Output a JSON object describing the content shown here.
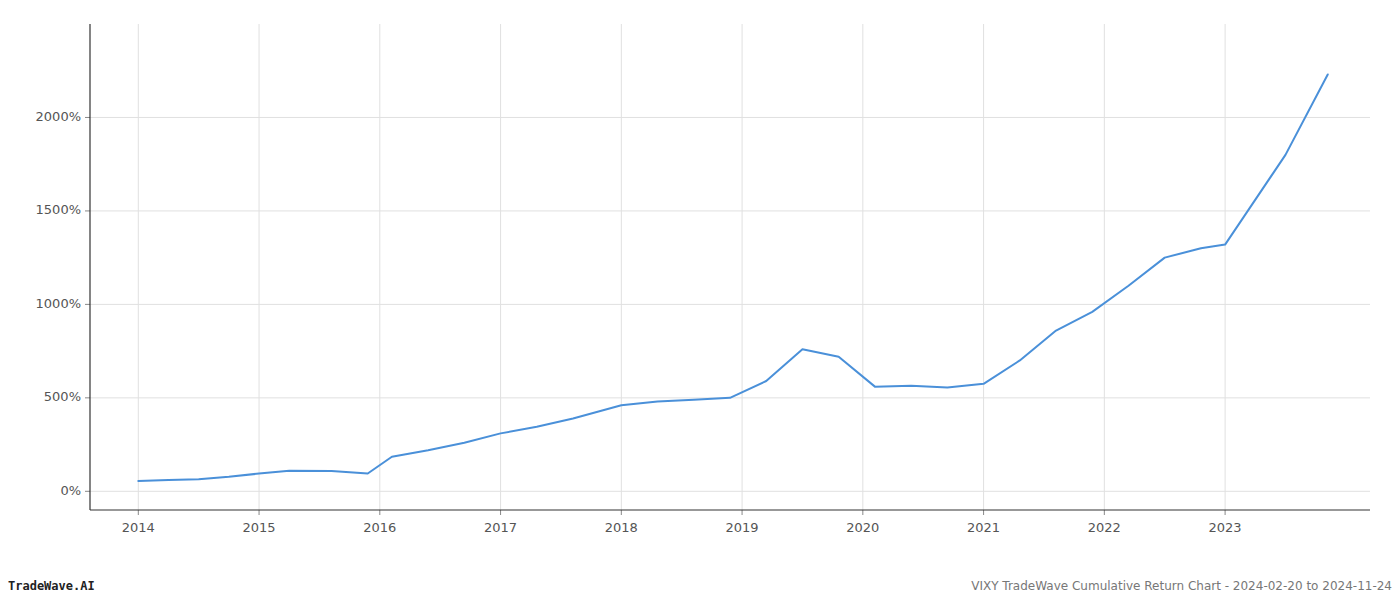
{
  "chart_data": {
    "type": "line",
    "x": [
      2014.0,
      2014.25,
      2014.5,
      2014.75,
      2015.0,
      2015.25,
      2015.6,
      2015.9,
      2016.1,
      2016.4,
      2016.7,
      2017.0,
      2017.3,
      2017.6,
      2018.0,
      2018.3,
      2018.6,
      2018.9,
      2019.2,
      2019.5,
      2019.8,
      2020.1,
      2020.4,
      2020.7,
      2021.0,
      2021.3,
      2021.6,
      2021.9,
      2022.2,
      2022.5,
      2022.8,
      2023.0,
      2023.5,
      2023.85
    ],
    "values": [
      55,
      60,
      65,
      78,
      95,
      110,
      108,
      95,
      185,
      220,
      260,
      310,
      345,
      390,
      460,
      480,
      490,
      500,
      590,
      760,
      720,
      560,
      565,
      555,
      575,
      700,
      860,
      960,
      1100,
      1250,
      1300,
      1320,
      1800,
      2230
    ],
    "color": "#4a90d9",
    "xlim": [
      2013.6,
      2024.2
    ],
    "xticks": [
      2014,
      2015,
      2016,
      2017,
      2018,
      2019,
      2020,
      2021,
      2022,
      2023
    ],
    "ylim": [
      -100,
      2500
    ],
    "yticks": [
      {
        "value": 0,
        "label": "0%"
      },
      {
        "value": 500,
        "label": "500%"
      },
      {
        "value": 1000,
        "label": "1000%"
      },
      {
        "value": 1500,
        "label": "1500%"
      },
      {
        "value": 2000,
        "label": "2000%"
      }
    ],
    "grid": true,
    "annotations": [
      "TradeWave.AI",
      "VIXY TradeWave Cumulative Return Chart - 2024-02-20 to 2024-11-24"
    ]
  }
}
